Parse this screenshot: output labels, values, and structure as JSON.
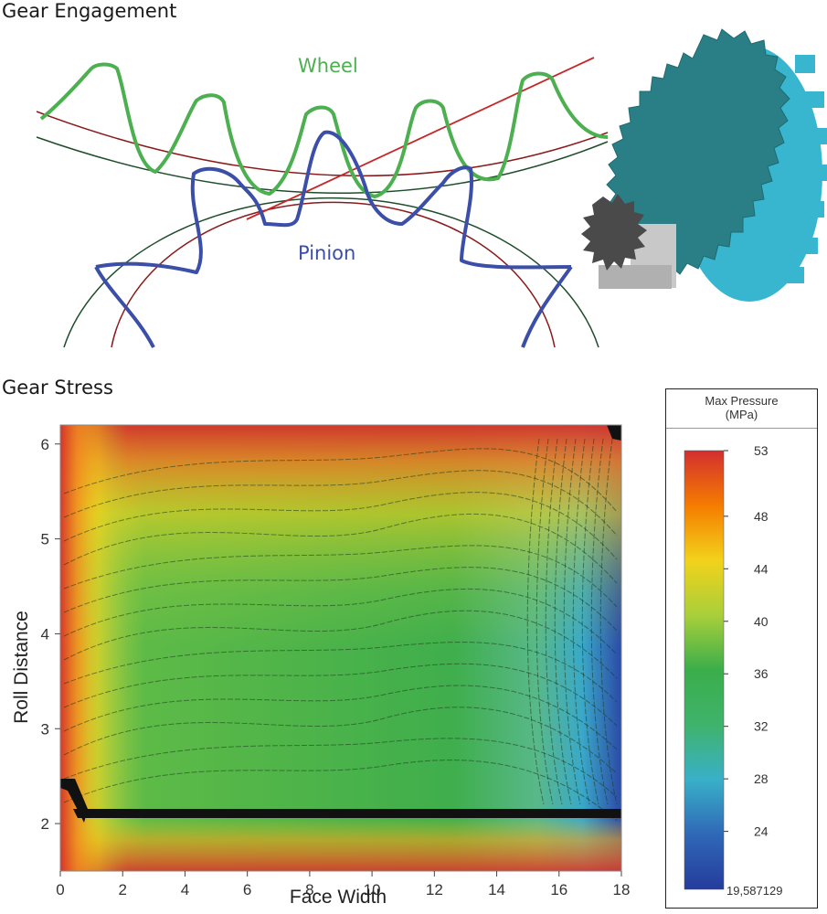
{
  "sections": {
    "top_title": "Gear Engagement",
    "bottom_title": "Gear Stress"
  },
  "diagram": {
    "wheel_label": "Wheel",
    "pinion_label": "Pinion",
    "colors": {
      "wheel": "#4caf50",
      "pinion": "#3b4ea8",
      "pitch_circle": "#8b1a1a",
      "base_circle": "#1e4d2b",
      "line_of_action": "#c62828",
      "gear_teal": "#2a7f86",
      "gear_cyan": "#38b6cf",
      "pinion_gray": "#4a4a4a"
    }
  },
  "chart_data": {
    "type": "heatmap",
    "title": "",
    "xlabel": "Face Width",
    "ylabel": "Roll Distance",
    "xlim": [
      0,
      18
    ],
    "ylim": [
      1.5,
      6.2
    ],
    "x_ticks": [
      "0",
      "2",
      "4",
      "6",
      "8",
      "10",
      "12",
      "14",
      "16",
      "18"
    ],
    "y_ticks": [
      "2",
      "3",
      "4",
      "5",
      "6"
    ],
    "colorbar": {
      "title_line1": "Max Pressure",
      "title_line2": "(MPa)",
      "ticks": [
        "53",
        "48",
        "44",
        "40",
        "36",
        "32",
        "28",
        "24"
      ],
      "min_label": "19,587129",
      "min": 19.587129,
      "max": 53,
      "colors": [
        "#d32f2f",
        "#f57c00",
        "#f2d21b",
        "#a9cf3a",
        "#3aae4a",
        "#3fb36b",
        "#39b0c8",
        "#2f68b7",
        "#253c9c"
      ]
    }
  }
}
